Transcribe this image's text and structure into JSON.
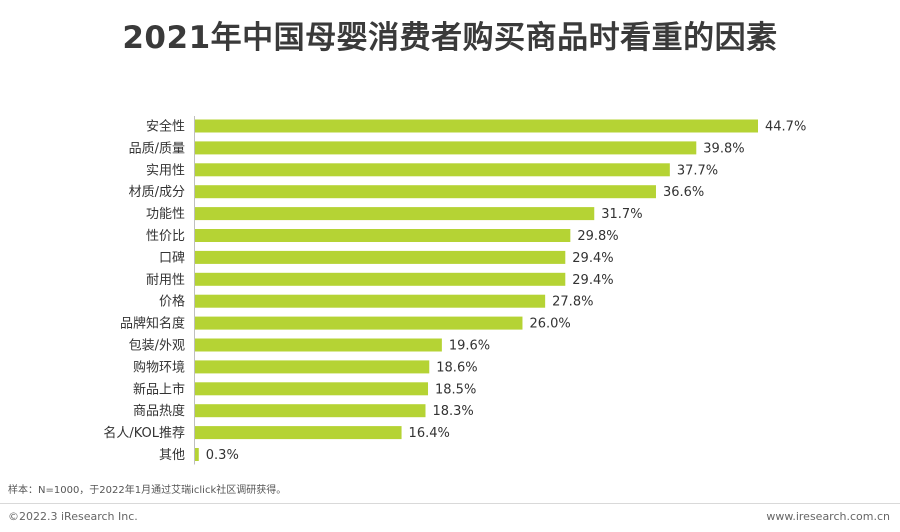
{
  "header": {
    "title": "2021年中国母婴消费者购买商品时看重的因素"
  },
  "chart_data": {
    "type": "bar",
    "orientation": "horizontal",
    "categories": [
      "安全性",
      "品质/质量",
      "实用性",
      "材质/成分",
      "功能性",
      "性价比",
      "口碑",
      "耐用性",
      "价格",
      "品牌知名度",
      "包装/外观",
      "购物环境",
      "新品上市",
      "商品热度",
      "名人/KOL推荐",
      "其他"
    ],
    "values": [
      44.7,
      39.8,
      37.7,
      36.6,
      31.7,
      29.8,
      29.4,
      29.4,
      27.8,
      26.0,
      19.6,
      18.6,
      18.5,
      18.3,
      16.4,
      0.3
    ],
    "value_labels": [
      "44.7%",
      "39.8%",
      "37.7%",
      "36.6%",
      "31.7%",
      "29.8%",
      "29.4%",
      "29.4%",
      "27.8%",
      "26.0%",
      "19.6%",
      "18.6%",
      "18.5%",
      "18.3%",
      "16.4%",
      "0.3%"
    ],
    "unit": "%",
    "xlim": [
      0,
      44.7
    ],
    "bar_color": "#b5d334",
    "grid": false,
    "legend": "none"
  },
  "footer": {
    "note": "样本：N=1000，于2022年1月通过艾瑞iclick社区调研获得。",
    "copyright": "©2022.3 iResearch Inc.",
    "site": "www.iresearch.com.cn"
  }
}
